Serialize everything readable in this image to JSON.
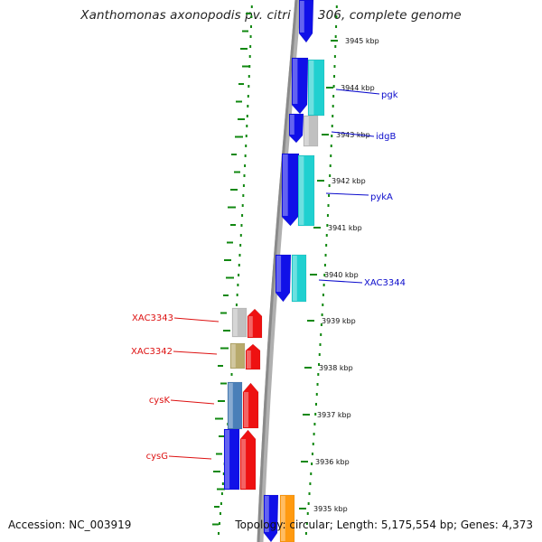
{
  "title": "Xanthomonas axonopodis pv. citri str. 306, complete genome",
  "footer": {
    "accession": "Accession: NC_003919",
    "topology": "Topology: circular; Length: 5,175,554 bp; Genes: 4,373"
  },
  "colors": {
    "blue_cds": "#1010e8",
    "cyan_feature": "#20d0d0",
    "red_cds": "#ee1111",
    "grey_feature": "#c0c0c0",
    "khaki_feature": "#b8aa6c",
    "steel_feature": "#4a7fb8",
    "orange_feature": "#ff9a10",
    "backbone": "#8a8a8a",
    "gc_skew_dots": "#118811",
    "forward_label": "#0a0acc",
    "reverse_label": "#dd1111"
  },
  "scale_ticks": [
    "3945 kbp",
    "3944 kbp",
    "3943 kbp",
    "3942 kbp",
    "3941 kbp",
    "3940 kbp",
    "3939 kbp",
    "3938 kbp",
    "3937 kbp",
    "3936 kbp",
    "3935 kbp"
  ],
  "gene_labels": {
    "forward": [
      "pgk",
      "idgB",
      "pykA",
      "XAC3344"
    ],
    "reverse": [
      "XAC3343",
      "XAC3342",
      "cysK",
      "cysG"
    ]
  }
}
